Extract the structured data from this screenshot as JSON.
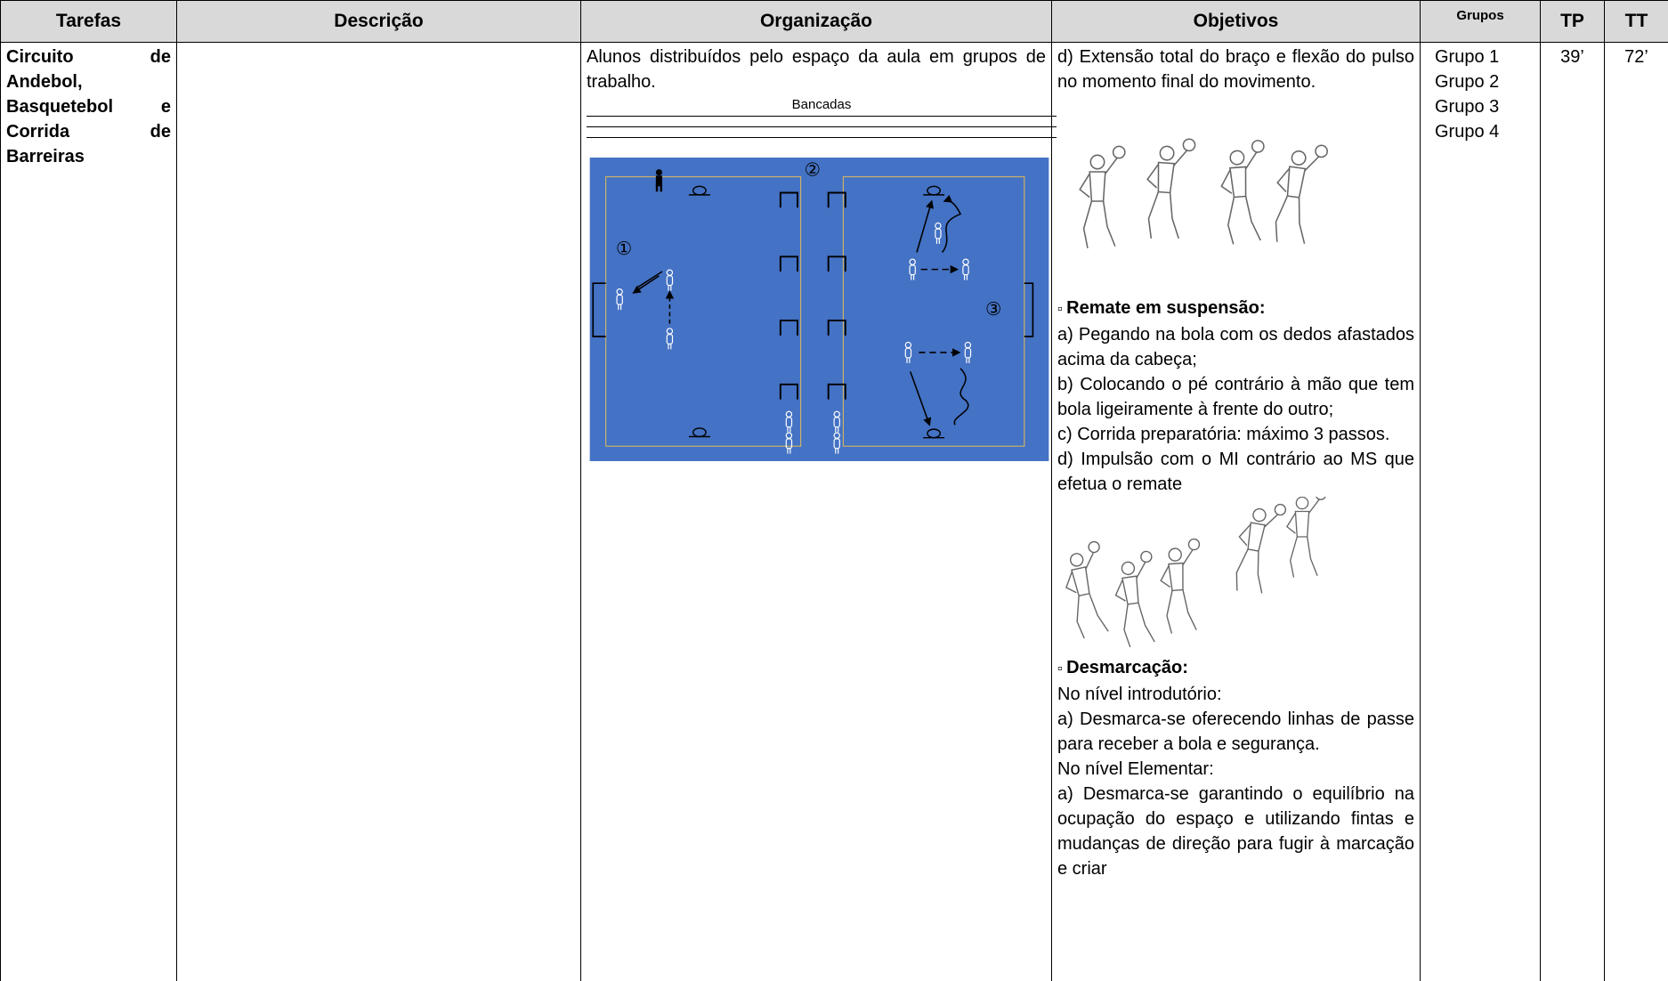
{
  "table": {
    "headers": [
      "Tarefas",
      "Descrição",
      "Organização",
      "Objetivos",
      "Grupos",
      "TP",
      "TT"
    ],
    "row": {
      "tarefa": "Circuito de Andebol, Basquetebol e Corrida de Barreiras",
      "organizacao": {
        "text": "Alunos distribuídos pelo espaço da aula em grupos de trabalho.",
        "diagram_label": "Bancadas",
        "stations": [
          "①",
          "②",
          "③"
        ]
      },
      "objetivos": {
        "intro": "d) Extensão total do braço e flexão do pulso no momento final do movimento.",
        "sections": [
          {
            "heading": "Remate em suspensão:",
            "items": [
              "a) Pegando na bola com os dedos afastados acima da cabeça;",
              "b) Colocando o pé contrário à mão que tem bola ligeiramente à frente do outro;",
              "c) Corrida preparatória: máximo 3 passos.",
              "d) Impulsão com o MI contrário ao MS que efetua o remate"
            ]
          },
          {
            "heading": "Desmarcação:",
            "items": [
              "No nível introdutório:",
              "a) Desmarca-se oferecendo linhas de passe para receber a bola e segurança.",
              "No nível Elementar:",
              "a) Desmarca-se garantindo o equilíbrio na ocupação do espaço e utilizando fintas e mudanças de direção para fugir à marcação e criar"
            ]
          }
        ]
      },
      "grupos": [
        "Grupo 1",
        "Grupo 2",
        "Grupo 3",
        "Grupo 4"
      ],
      "tp": "39’",
      "tt": "72’"
    }
  }
}
